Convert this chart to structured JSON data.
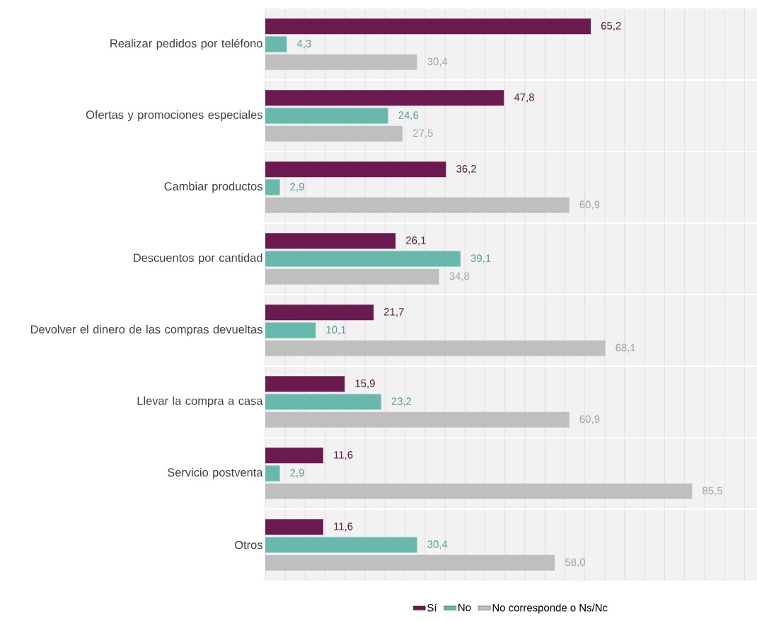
{
  "chart_data": {
    "type": "bar",
    "orientation": "horizontal",
    "categories": [
      "Realizar pedidos por teléfono",
      "Ofertas y promociones especiales",
      "Cambiar productos",
      "Descuentos por cantidad",
      "Devolver el dinero de las compras devueltas",
      "Llevar la compra a casa",
      "Servicio postventa",
      "Otros"
    ],
    "series": [
      {
        "name": "Sí",
        "color": "#6b1a4f",
        "values": [
          65.2,
          47.8,
          36.2,
          26.1,
          21.7,
          15.9,
          11.6,
          11.6
        ],
        "value_labels": [
          "65,2",
          "47,8",
          "36,2",
          "26,1",
          "21,7",
          "15,9",
          "11,6",
          "11,6"
        ]
      },
      {
        "name": "No",
        "color": "#68b8ae",
        "values": [
          4.3,
          24.6,
          2.9,
          39.1,
          10.1,
          23.2,
          2.9,
          30.4
        ],
        "value_labels": [
          "4,3",
          "24,6",
          "2,9",
          "39,1",
          "10,1",
          "23,2",
          "2,9",
          "30,4"
        ]
      },
      {
        "name": "No corresponde o Ns/Nc",
        "color": "#bfbfbf",
        "values": [
          30.4,
          27.5,
          60.9,
          34.8,
          68.1,
          60.9,
          85.5,
          58.0
        ],
        "value_labels": [
          "30,4",
          "27,5",
          "60,9",
          "34,8",
          "68,1",
          "60,9",
          "85,5",
          "58,0"
        ]
      }
    ],
    "xlim": [
      0,
      98.5
    ],
    "xticks": [
      {
        "value": 0,
        "label": null
      },
      {
        "value": 4,
        "label": null
      },
      {
        "value": 8,
        "label": null
      },
      {
        "value": 12,
        "label": null
      },
      {
        "value": 16,
        "label": null
      },
      {
        "value": 20,
        "label": null
      },
      {
        "value": 24,
        "label": null
      },
      {
        "value": 28,
        "label": null
      },
      {
        "value": 32,
        "label": null
      },
      {
        "value": 36,
        "label": null
      },
      {
        "value": 40,
        "label": null
      },
      {
        "value": 44,
        "label": null
      },
      {
        "value": 48,
        "label": null
      },
      {
        "value": 52,
        "label": null
      },
      {
        "value": 56,
        "label": null
      },
      {
        "value": 60,
        "label": null
      },
      {
        "value": 64,
        "label": null
      },
      {
        "value": 68,
        "label": null
      },
      {
        "value": 72,
        "label": null
      },
      {
        "value": 76,
        "label": null
      },
      {
        "value": 80,
        "label": null
      },
      {
        "value": 84,
        "label": null
      },
      {
        "value": 88,
        "label": null
      },
      {
        "value": 92,
        "label": null
      },
      {
        "value": 96,
        "label": null
      }
    ],
    "grid": "x",
    "legend": "bottom",
    "tick_labels": "y"
  }
}
